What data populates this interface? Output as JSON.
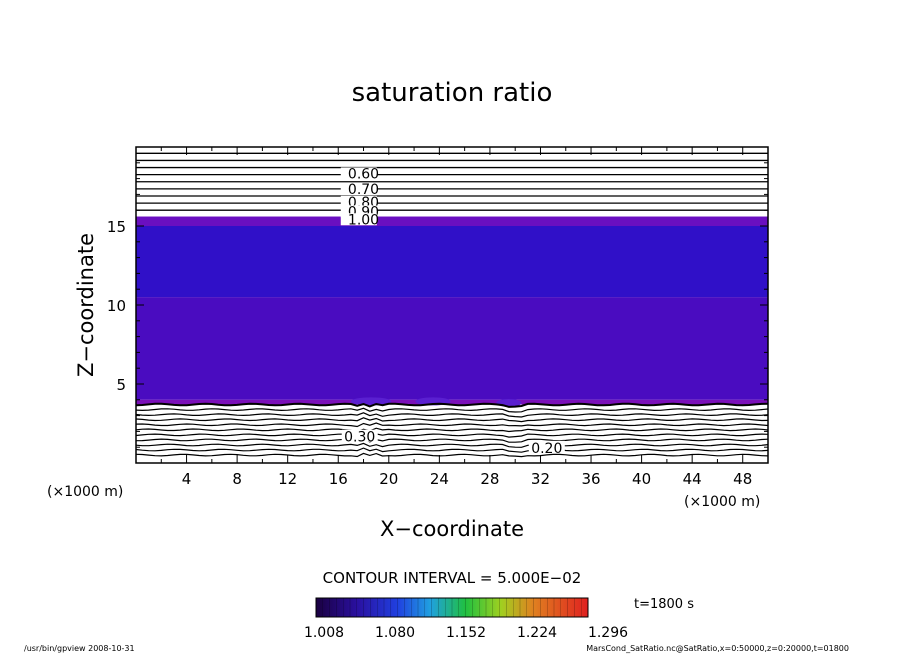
{
  "chart_data": {
    "type": "contour",
    "title": "saturation ratio",
    "xlabel": "X−coordinate",
    "ylabel": "Z−coordinate",
    "x_unit_label": "(×1000 m)",
    "z_unit_label": "(×1000 m)",
    "xlim": [
      0,
      50
    ],
    "ylim": [
      0,
      20
    ],
    "x_ticks": [
      "4",
      "8",
      "12",
      "16",
      "20",
      "24",
      "28",
      "32",
      "36",
      "40",
      "44",
      "48"
    ],
    "y_ticks": [
      "5",
      "10",
      "15"
    ],
    "contour_interval_text": "CONTOUR INTERVAL = 5.000E−02",
    "time_label": "t=1800 s",
    "colorbar_ticks": [
      "1.008",
      "1.080",
      "1.152",
      "1.224",
      "1.296"
    ],
    "upper_contour_labels": [
      "0.60",
      "0.70",
      "0.80",
      "0.90",
      "1.00"
    ],
    "lower_contour_labels": [
      "0.30",
      "0.20"
    ],
    "shaded_regions": [
      {
        "z_range": [
          15.0,
          15.6
        ],
        "color": "#6a0fc0"
      },
      {
        "z_range": [
          10.5,
          15.0
        ],
        "color": "#3010c8"
      },
      {
        "z_range": [
          4.0,
          10.5
        ],
        "color": "#4a0cc0"
      },
      {
        "z_range": [
          3.7,
          4.0
        ],
        "color": "#7a10b8"
      }
    ],
    "grid": false
  },
  "footer": {
    "left": "/usr/bin/gpview   2008-10-31",
    "right": "MarsCond_SatRatio.nc@SatRatio,x=0:50000,z=0:20000,t=01800"
  }
}
